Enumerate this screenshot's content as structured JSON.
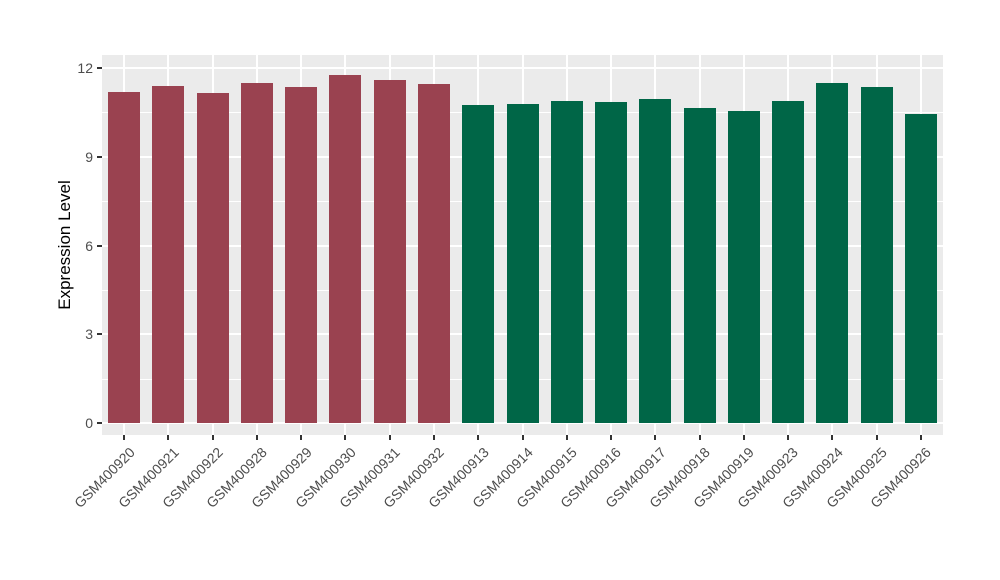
{
  "chart_data": {
    "type": "bar",
    "title": "",
    "xlabel": "",
    "ylabel": "Expression Level",
    "ylim": [
      0,
      12.4
    ],
    "yticks": [
      0,
      3,
      6,
      9,
      12
    ],
    "minor_gridlines": [
      1.5,
      4.5,
      7.5,
      10.5
    ],
    "grid": true,
    "legend_position": "none",
    "panel_background": "#EBEBEB",
    "gridline_color": "#FFFFFF",
    "tick_color": "#333333",
    "tick_label_color": "#4D4D4D",
    "categories": [
      "GSM400920",
      "GSM400921",
      "GSM400922",
      "GSM400928",
      "GSM400929",
      "GSM400930",
      "GSM400931",
      "GSM400932",
      "GSM400913",
      "GSM400914",
      "GSM400915",
      "GSM400916",
      "GSM400917",
      "GSM400918",
      "GSM400919",
      "GSM400923",
      "GSM400924",
      "GSM400925",
      "GSM400926"
    ],
    "values": [
      11.2,
      11.4,
      11.15,
      11.5,
      11.35,
      11.75,
      11.6,
      11.45,
      10.75,
      10.8,
      10.9,
      10.85,
      10.95,
      10.65,
      10.55,
      10.9,
      11.5,
      11.35,
      10.45
    ],
    "groups": [
      "group1",
      "group1",
      "group1",
      "group1",
      "group1",
      "group1",
      "group1",
      "group1",
      "group2",
      "group2",
      "group2",
      "group2",
      "group2",
      "group2",
      "group2",
      "group2",
      "group2",
      "group2",
      "group2"
    ],
    "group_colors": {
      "group1": "#9A4250",
      "group2": "#006647"
    }
  }
}
